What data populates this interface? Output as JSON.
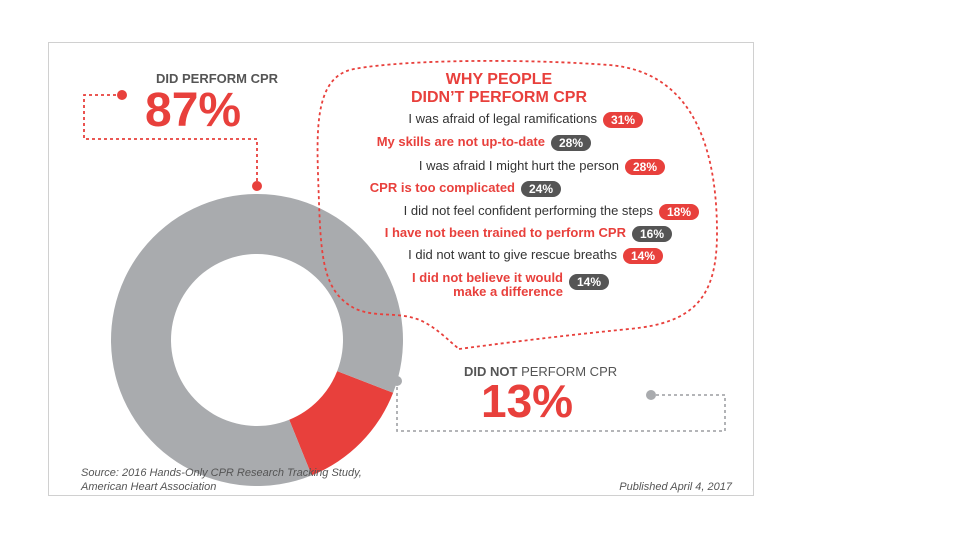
{
  "colors": {
    "red": "#e8403c",
    "gray": "#a9abae",
    "dark_gray": "#555555",
    "text": "#333333"
  },
  "chart_data": {
    "type": "pie",
    "donut": true,
    "slices": [
      {
        "label": "DID PERFORM CPR",
        "value": 87,
        "display": "87%",
        "color": "#a9abae"
      },
      {
        "label_bold": "DID NOT",
        "label_rest": " PERFORM CPR",
        "value": 13,
        "display": "13%",
        "color": "#e8403c"
      }
    ],
    "reasons_title": [
      "WHY PEOPLE",
      "DIDN’T PERFORM CPR"
    ],
    "reasons": [
      {
        "lines": [
          "I was afraid of legal ramifications"
        ],
        "value": "31%",
        "text_color": "#333333",
        "badge": "#e8403c"
      },
      {
        "lines": [
          "My skills are not up-to-date"
        ],
        "value": "28%",
        "text_color": "#e8403c",
        "badge": "#555555"
      },
      {
        "lines": [
          "I was afraid I might hurt the person"
        ],
        "value": "28%",
        "text_color": "#333333",
        "badge": "#e8403c"
      },
      {
        "lines": [
          "CPR is too complicated"
        ],
        "value": "24%",
        "text_color": "#e8403c",
        "badge": "#555555"
      },
      {
        "lines": [
          "I did not feel confident performing the steps"
        ],
        "value": "18%",
        "text_color": "#333333",
        "badge": "#e8403c"
      },
      {
        "lines": [
          "I have not been trained to perform CPR"
        ],
        "value": "16%",
        "text_color": "#e8403c",
        "badge": "#555555"
      },
      {
        "lines": [
          "I did not want to give rescue breaths"
        ],
        "value": "14%",
        "text_color": "#333333",
        "badge": "#e8403c"
      },
      {
        "lines": [
          "I did not believe it would",
          "make a difference"
        ],
        "value": "14%",
        "text_color": "#e8403c",
        "badge": "#555555"
      }
    ],
    "source": [
      "Source: 2016 Hands-Only CPR Research Tracking Study,",
      "American Heart Association"
    ],
    "published": "Published April 4, 2017"
  }
}
